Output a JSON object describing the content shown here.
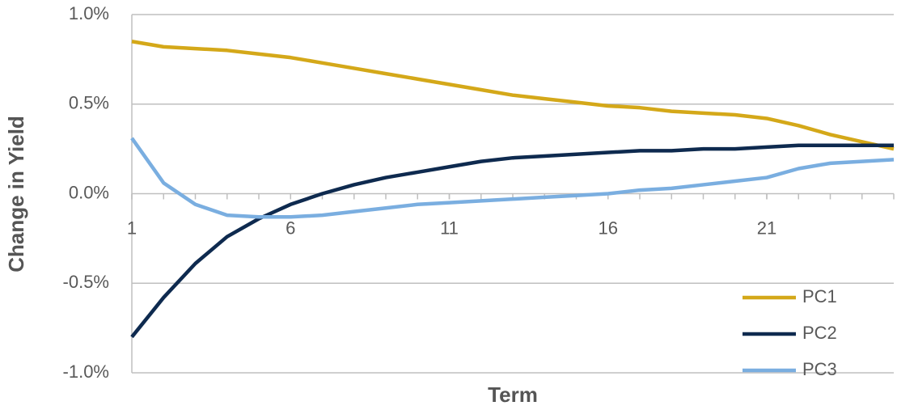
{
  "chart_data": {
    "type": "line",
    "x_label": "Term",
    "y_label": "Change in Yield",
    "x": [
      1,
      2,
      3,
      4,
      5,
      6,
      7,
      8,
      9,
      10,
      11,
      12,
      13,
      14,
      15,
      16,
      17,
      18,
      19,
      20,
      21,
      22,
      23,
      24,
      25
    ],
    "xlim": [
      1,
      25
    ],
    "xticks": [
      1,
      6,
      11,
      16,
      21
    ],
    "ylim": [
      -1.0,
      1.0
    ],
    "yticks": [
      {
        "value": -1.0,
        "label": "-1.0%"
      },
      {
        "value": -0.5,
        "label": "-0.5%"
      },
      {
        "value": 0.0,
        "label": "0.0%"
      },
      {
        "value": 0.5,
        "label": "0.5%"
      },
      {
        "value": 1.0,
        "label": "1.0%"
      }
    ],
    "grid": true,
    "legend": "bottom-right",
    "series": [
      {
        "name": "PC1",
        "color": "#d4a819",
        "values": [
          0.85,
          0.82,
          0.81,
          0.8,
          0.78,
          0.76,
          0.73,
          0.7,
          0.67,
          0.64,
          0.61,
          0.58,
          0.55,
          0.53,
          0.51,
          0.49,
          0.48,
          0.46,
          0.45,
          0.44,
          0.42,
          0.38,
          0.33,
          0.29,
          0.25
        ]
      },
      {
        "name": "PC2",
        "color": "#0e2a4f",
        "values": [
          -0.8,
          -0.58,
          -0.39,
          -0.24,
          -0.14,
          -0.06,
          0.0,
          0.05,
          0.09,
          0.12,
          0.15,
          0.18,
          0.2,
          0.21,
          0.22,
          0.23,
          0.24,
          0.24,
          0.25,
          0.25,
          0.26,
          0.27,
          0.27,
          0.27,
          0.27
        ]
      },
      {
        "name": "PC3",
        "color": "#7aaee0",
        "values": [
          0.31,
          0.06,
          -0.06,
          -0.12,
          -0.13,
          -0.13,
          -0.12,
          -0.1,
          -0.08,
          -0.06,
          -0.05,
          -0.04,
          -0.03,
          -0.02,
          -0.01,
          0.0,
          0.02,
          0.03,
          0.05,
          0.07,
          0.09,
          0.14,
          0.17,
          0.18,
          0.19
        ]
      }
    ]
  }
}
